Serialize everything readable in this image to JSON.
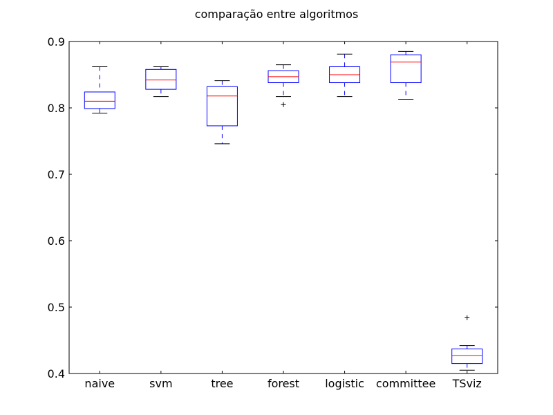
{
  "chart_data": {
    "type": "boxplot",
    "title": "comparação entre algoritmos",
    "xlabel": "",
    "ylabel": "",
    "categories": [
      "naive",
      "svm",
      "tree",
      "forest",
      "logistic",
      "committee",
      "TSviz"
    ],
    "ylim": [
      0.4,
      0.9
    ],
    "yticks": [
      "0.4",
      "0.5",
      "0.6",
      "0.7",
      "0.8",
      "0.9"
    ],
    "grid": false,
    "colors": {
      "box": "#0000ff",
      "whisker": "#0000ff",
      "cap": "#000000",
      "median": "#ff0000",
      "flier": "#000000",
      "axes": "#000000"
    },
    "boxes": [
      {
        "name": "naive",
        "whislo": 0.792,
        "q1": 0.799,
        "med": 0.81,
        "q3": 0.824,
        "whishi": 0.862,
        "fliers": []
      },
      {
        "name": "svm",
        "whislo": 0.817,
        "q1": 0.828,
        "med": 0.842,
        "q3": 0.858,
        "whishi": 0.862,
        "fliers": []
      },
      {
        "name": "tree",
        "whislo": 0.746,
        "q1": 0.773,
        "med": 0.818,
        "q3": 0.832,
        "whishi": 0.841,
        "fliers": []
      },
      {
        "name": "forest",
        "whislo": 0.817,
        "q1": 0.838,
        "med": 0.847,
        "q3": 0.856,
        "whishi": 0.865,
        "fliers": [
          0.805
        ]
      },
      {
        "name": "logistic",
        "whislo": 0.817,
        "q1": 0.838,
        "med": 0.85,
        "q3": 0.862,
        "whishi": 0.881,
        "fliers": []
      },
      {
        "name": "committee",
        "whislo": 0.813,
        "q1": 0.838,
        "med": 0.869,
        "q3": 0.88,
        "whishi": 0.885,
        "fliers": []
      },
      {
        "name": "TSviz",
        "whislo": 0.405,
        "q1": 0.415,
        "med": 0.427,
        "q3": 0.437,
        "whishi": 0.442,
        "fliers": [
          0.484
        ]
      }
    ]
  }
}
